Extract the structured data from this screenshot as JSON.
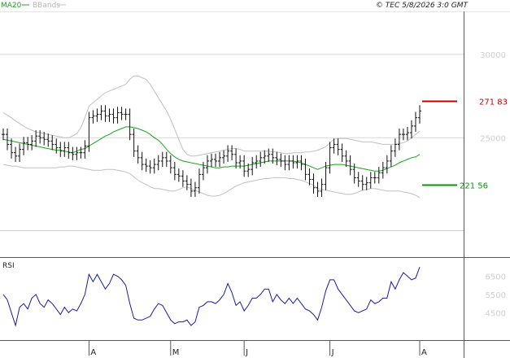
{
  "header": {
    "legend_ma": "MA20",
    "legend_bbands": "BBands",
    "copyright": "© TEC 5/8/2026 3:0 GMT"
  },
  "colors": {
    "ma": "#1aa51a",
    "bbands": "#c0c0c0",
    "bars": "#111111",
    "resistance": "#cc0000",
    "support": "#009900",
    "rsi": "#1a1aa6",
    "grid": "#d8d8d8"
  },
  "chart_data": [
    {
      "type": "ohlc",
      "title": "",
      "y_ticks": [
        {
          "value": 300000,
          "label": "30000"
        },
        {
          "value": 250000,
          "label": "25000"
        }
      ],
      "ylim": [
        195000,
        315000
      ],
      "x_labels": [
        {
          "index": 21,
          "label": "A"
        },
        {
          "index": 41,
          "label": "M"
        },
        {
          "index": 59,
          "label": "J"
        },
        {
          "index": 80,
          "label": "J"
        },
        {
          "index": 102,
          "label": "A"
        }
      ],
      "levels": [
        {
          "name": "resistance",
          "value": 271830,
          "label": "271 83"
        },
        {
          "name": "support",
          "value": 221560,
          "label": "221 56"
        }
      ],
      "close": [
        252000,
        246000,
        241000,
        239000,
        243000,
        247000,
        246000,
        248000,
        251000,
        250000,
        249000,
        248000,
        246000,
        244000,
        242000,
        244000,
        241000,
        240000,
        241000,
        241000,
        245000,
        262000,
        263000,
        264000,
        266000,
        263000,
        264000,
        262000,
        265000,
        264000,
        264000,
        252000,
        242000,
        238000,
        234000,
        233000,
        232000,
        234000,
        236000,
        238000,
        236000,
        232000,
        228000,
        227000,
        224000,
        222000,
        218000,
        220000,
        228000,
        232000,
        236000,
        237000,
        236000,
        238000,
        239000,
        242000,
        240000,
        235000,
        236000,
        230000,
        231000,
        235000,
        236000,
        238000,
        239000,
        240000,
        238000,
        237000,
        236000,
        234000,
        236000,
        235000,
        236000,
        234000,
        228000,
        225000,
        220000,
        218000,
        222000,
        232000,
        244000,
        246000,
        243000,
        239000,
        236000,
        231000,
        226000,
        224000,
        222000,
        223000,
        226000,
        226000,
        229000,
        232000,
        236000,
        242000,
        246000,
        252000,
        252000,
        253000,
        257000,
        262000,
        266000
      ],
      "ma20": [
        249000,
        248500,
        248000,
        247500,
        247000,
        246500,
        246000,
        245500,
        245000,
        244500,
        244000,
        243500,
        243000,
        242500,
        242500,
        242000,
        241500,
        241000,
        242000,
        243000,
        243500,
        245000,
        246500,
        248000,
        249500,
        251000,
        252000,
        253500,
        254500,
        255500,
        256500,
        256500,
        256000,
        255500,
        254500,
        253500,
        252000,
        250000,
        248500,
        246000,
        243000,
        240500,
        238500,
        237000,
        236000,
        235500,
        235000,
        234500,
        234000,
        233500,
        233000,
        232500,
        232000,
        232000,
        232500,
        232500,
        233000,
        233000,
        233000,
        233000,
        233500,
        234000,
        234500,
        235000,
        235500,
        236000,
        236000,
        236000,
        236000,
        236000,
        236000,
        236000,
        235500,
        235000,
        234000,
        233000,
        232000,
        231000,
        232000,
        233000,
        233500,
        234000,
        234000,
        234000,
        233500,
        233000,
        232500,
        232000,
        231500,
        231000,
        230500,
        230000,
        230000,
        230500,
        231500,
        232500,
        233500,
        235000,
        236000,
        237000,
        238000,
        238500,
        240000
      ],
      "bb_upper": [
        265000,
        263500,
        262000,
        260000,
        258500,
        257000,
        255500,
        254500,
        253500,
        253000,
        252500,
        252000,
        251500,
        251000,
        250500,
        250000,
        250000,
        251000,
        252500,
        256000,
        262000,
        269000,
        271000,
        273000,
        275000,
        277000,
        278000,
        279000,
        280000,
        281000,
        282000,
        285000,
        287000,
        287000,
        286000,
        285000,
        282000,
        278000,
        274000,
        270000,
        266000,
        261000,
        255000,
        249000,
        243000,
        240000,
        239000,
        239000,
        239500,
        240000,
        240500,
        241000,
        241500,
        242000,
        242500,
        243000,
        243500,
        243500,
        243000,
        242000,
        242000,
        242000,
        242000,
        242000,
        242000,
        242000,
        241500,
        241500,
        241000,
        240500,
        240500,
        241000,
        241000,
        241000,
        241500,
        241500,
        242000,
        242500,
        243500,
        244500,
        247000,
        249000,
        249500,
        249500,
        249500,
        249000,
        248500,
        248000,
        247500,
        247500,
        247500,
        247000,
        246500,
        246000,
        246000,
        246000,
        246000,
        246500,
        247000,
        248000,
        250000,
        252000,
        254000
      ],
      "bb_lower": [
        234000,
        233500,
        233000,
        233000,
        232500,
        232000,
        232000,
        232000,
        232000,
        232000,
        232000,
        232000,
        232000,
        232000,
        232500,
        232500,
        233000,
        233000,
        232500,
        232000,
        231500,
        231000,
        230500,
        230500,
        230500,
        231000,
        231000,
        231000,
        230500,
        230000,
        229500,
        228500,
        226500,
        224500,
        223000,
        222000,
        220500,
        219500,
        219500,
        219000,
        218500,
        218000,
        218000,
        219000,
        220000,
        220500,
        219500,
        218500,
        217500,
        216500,
        215500,
        215000,
        215000,
        215500,
        216500,
        218000,
        219500,
        221000,
        222000,
        223000,
        223500,
        224000,
        224500,
        225000,
        225500,
        225500,
        226000,
        226000,
        226000,
        226000,
        225500,
        225500,
        225000,
        224500,
        223500,
        222500,
        221500,
        219500,
        219000,
        218500,
        218000,
        217500,
        217000,
        216500,
        216000,
        216000,
        216500,
        217500,
        218500,
        219000,
        219500,
        219500,
        219000,
        218500,
        218000,
        218000,
        218000,
        218000,
        217500,
        217000,
        216500,
        215500,
        214000
      ]
    },
    {
      "type": "line",
      "title": "RSI",
      "y_ticks": [
        {
          "value": 65,
          "label": "6500"
        },
        {
          "value": 55,
          "label": "5500"
        },
        {
          "value": 45,
          "label": "4500"
        }
      ],
      "ylim": [
        30,
        75
      ],
      "values": [
        55,
        52,
        45,
        38,
        48,
        50,
        47,
        53,
        55,
        50,
        48,
        52,
        50,
        47,
        44,
        48,
        45,
        47,
        46,
        50,
        55,
        66,
        62,
        66,
        62,
        58,
        61,
        66,
        65,
        63,
        60,
        50,
        42,
        41,
        41,
        42,
        43,
        47,
        50,
        49,
        45,
        41,
        39,
        40,
        40,
        41,
        38,
        40,
        48,
        49,
        51,
        51,
        50,
        52,
        55,
        61,
        56,
        49,
        51,
        46,
        49,
        53,
        53,
        55,
        58,
        58,
        51,
        55,
        52,
        50,
        53,
        50,
        53,
        50,
        47,
        46,
        44,
        41,
        48,
        57,
        63,
        63,
        58,
        55,
        52,
        49,
        46,
        45,
        46,
        47,
        52,
        50,
        51,
        53,
        53,
        62,
        58,
        63,
        67,
        65,
        63,
        64,
        70
      ]
    }
  ]
}
